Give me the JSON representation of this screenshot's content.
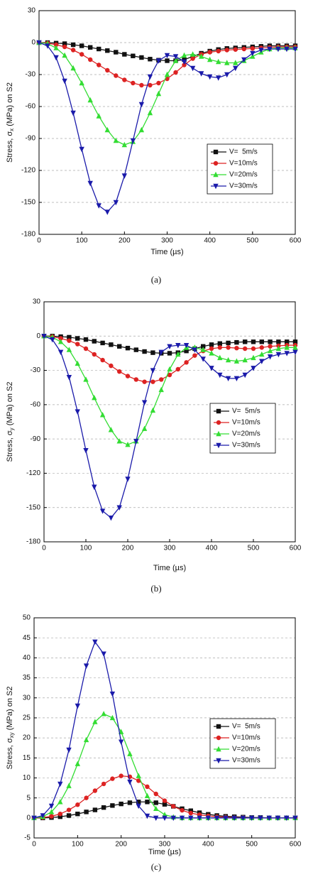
{
  "chart_data": [
    {
      "type": "line",
      "caption": "(a)",
      "x_label": "Time (µs)",
      "y_label": {
        "prefix": "Stress, σ",
        "sub": "x",
        "suffix": " (MPa) on S2"
      },
      "x": [
        0,
        20,
        40,
        60,
        80,
        100,
        120,
        140,
        160,
        180,
        200,
        220,
        240,
        260,
        280,
        300,
        320,
        340,
        360,
        380,
        400,
        420,
        440,
        460,
        480,
        500,
        520,
        540,
        560,
        580,
        600
      ],
      "xlim": [
        0,
        600
      ],
      "xticks": [
        0,
        100,
        200,
        300,
        400,
        500,
        600
      ],
      "ylim": [
        -180,
        30
      ],
      "yticks": [
        -180,
        -150,
        -120,
        -90,
        -60,
        -30,
        0,
        30
      ],
      "grid": true,
      "series": [
        {
          "name": "V=  5m/s",
          "color": "#111111",
          "marker": "square",
          "values": [
            0,
            0,
            -0.5,
            -1,
            -2,
            -3,
            -4.5,
            -6,
            -7.5,
            -9,
            -11,
            -12.5,
            -14,
            -15.5,
            -16.5,
            -17,
            -17,
            -16,
            -13,
            -10,
            -8,
            -6.5,
            -5.5,
            -5,
            -4.5,
            -4,
            -3.5,
            -3,
            -3,
            -3,
            -3
          ]
        },
        {
          "name": "V=10m/s",
          "color": "#dd2222",
          "marker": "circle",
          "values": [
            0,
            -0.5,
            -2,
            -4,
            -7,
            -11,
            -16,
            -21,
            -26,
            -31,
            -35,
            -38,
            -40,
            -40,
            -38,
            -34,
            -28,
            -21,
            -15,
            -11,
            -9,
            -8,
            -7,
            -6.5,
            -6,
            -5.5,
            -5,
            -4.5,
            -4,
            -4,
            -4
          ]
        },
        {
          "name": "V=20m/s",
          "color": "#33dd33",
          "marker": "triangle-up",
          "values": [
            0,
            -1,
            -5,
            -12,
            -24,
            -38,
            -54,
            -69,
            -82,
            -92,
            -96,
            -93,
            -82,
            -66,
            -48,
            -30,
            -17,
            -12,
            -11,
            -13,
            -16,
            -18,
            -19,
            -19,
            -17,
            -13,
            -9,
            -6,
            -5,
            -5,
            -5
          ]
        },
        {
          "name": "V=30m/s",
          "color": "#1a1aaa",
          "marker": "triangle-down",
          "values": [
            0,
            -3,
            -14,
            -36,
            -66,
            -100,
            -132,
            -153,
            -159,
            -150,
            -125,
            -92,
            -58,
            -32,
            -17,
            -12,
            -13,
            -18,
            -24,
            -29,
            -32,
            -33,
            -30,
            -24,
            -16,
            -10,
            -7,
            -6,
            -6,
            -6,
            -6
          ]
        }
      ]
    },
    {
      "type": "line",
      "caption": "(b)",
      "x_label": "Time (µs)",
      "y_label": {
        "prefix": "Stress, σ",
        "sub": "y",
        "suffix": " (MPa) on S2"
      },
      "x": [
        0,
        20,
        40,
        60,
        80,
        100,
        120,
        140,
        160,
        180,
        200,
        220,
        240,
        260,
        280,
        300,
        320,
        340,
        360,
        380,
        400,
        420,
        440,
        460,
        480,
        500,
        520,
        540,
        560,
        580,
        600
      ],
      "xlim": [
        0,
        600
      ],
      "xticks": [
        0,
        100,
        200,
        300,
        400,
        500,
        600
      ],
      "ylim": [
        -180,
        30
      ],
      "yticks": [
        -180,
        -150,
        -120,
        -90,
        -60,
        -30,
        0,
        30
      ],
      "grid": true,
      "series": [
        {
          "name": "V=  5m/s",
          "color": "#111111",
          "marker": "square",
          "values": [
            0,
            0,
            -0.5,
            -1,
            -2,
            -3,
            -4.5,
            -6,
            -7.5,
            -9,
            -10.5,
            -12,
            -13.5,
            -14.5,
            -15,
            -15,
            -14.5,
            -13,
            -11,
            -9,
            -7.5,
            -6.5,
            -6,
            -5.5,
            -5,
            -5,
            -5,
            -5,
            -5,
            -5,
            -5
          ]
        },
        {
          "name": "V=10m/s",
          "color": "#dd2222",
          "marker": "circle",
          "values": [
            0,
            -0.5,
            -2,
            -4,
            -7,
            -11,
            -16,
            -21,
            -26,
            -31,
            -35,
            -38,
            -40,
            -40,
            -38,
            -34,
            -29,
            -23,
            -17,
            -13,
            -11,
            -10,
            -10,
            -10.5,
            -11,
            -11,
            -10,
            -9,
            -8.5,
            -8,
            -8
          ]
        },
        {
          "name": "V=20m/s",
          "color": "#33dd33",
          "marker": "triangle-up",
          "values": [
            0,
            -1,
            -5,
            -12,
            -24,
            -38,
            -54,
            -69,
            -82,
            -92,
            -95,
            -92,
            -81,
            -65,
            -47,
            -29,
            -16,
            -10,
            -10,
            -12,
            -15,
            -19,
            -21,
            -22,
            -21,
            -19,
            -16,
            -13,
            -11,
            -10,
            -10
          ]
        },
        {
          "name": "V=30m/s",
          "color": "#1a1aaa",
          "marker": "triangle-down",
          "values": [
            0,
            -3,
            -14,
            -36,
            -66,
            -100,
            -132,
            -153,
            -159,
            -150,
            -125,
            -92,
            -58,
            -30,
            -14,
            -9,
            -8,
            -8,
            -12,
            -20,
            -28,
            -34,
            -37,
            -37,
            -34,
            -28,
            -22,
            -18,
            -16,
            -15,
            -14
          ]
        }
      ]
    },
    {
      "type": "line",
      "caption": "(c)",
      "x_label": "Time (µs)",
      "y_label": {
        "prefix": "Stress, σ",
        "sub": "xy",
        "suffix": " (MPa) on S2"
      },
      "x": [
        0,
        20,
        40,
        60,
        80,
        100,
        120,
        140,
        160,
        180,
        200,
        220,
        240,
        260,
        280,
        300,
        320,
        340,
        360,
        380,
        400,
        420,
        440,
        460,
        480,
        500,
        520,
        540,
        560,
        580,
        600
      ],
      "xlim": [
        0,
        600
      ],
      "xticks": [
        0,
        100,
        200,
        300,
        400,
        500,
        600
      ],
      "ylim": [
        -5,
        50
      ],
      "yticks": [
        -5,
        0,
        5,
        10,
        15,
        20,
        25,
        30,
        35,
        40,
        45,
        50
      ],
      "grid": true,
      "series": [
        {
          "name": "V=  5m/s",
          "color": "#111111",
          "marker": "square",
          "values": [
            0,
            0,
            0.1,
            0.3,
            0.6,
            1,
            1.5,
            2,
            2.6,
            3.1,
            3.5,
            3.8,
            4,
            4,
            3.8,
            3.4,
            2.9,
            2.3,
            1.8,
            1.3,
            0.9,
            0.6,
            0.4,
            0.3,
            0.2,
            0.1,
            0.1,
            0,
            0,
            0,
            0
          ]
        },
        {
          "name": "V=10m/s",
          "color": "#dd2222",
          "marker": "circle",
          "values": [
            0,
            0.1,
            0.4,
            1,
            2,
            3.3,
            5,
            6.8,
            8.5,
            9.8,
            10.5,
            10.3,
            9.3,
            7.8,
            6,
            4.3,
            2.9,
            1.9,
            1.2,
            0.8,
            0.5,
            0.3,
            0.2,
            0.1,
            0.1,
            0,
            0,
            0,
            0,
            0,
            0
          ]
        },
        {
          "name": "V=20m/s",
          "color": "#33dd33",
          "marker": "triangle-up",
          "values": [
            0,
            0.3,
            1.5,
            4,
            8,
            13.5,
            19.5,
            24,
            26,
            25,
            21.5,
            16,
            10.5,
            5.5,
            2.3,
            0.8,
            0.2,
            0,
            0,
            0,
            0,
            0,
            0,
            0,
            0,
            0,
            0,
            0,
            0,
            0,
            0
          ]
        },
        {
          "name": "V=30m/s",
          "color": "#1a1aaa",
          "marker": "triangle-down",
          "values": [
            0,
            0.6,
            3,
            8.5,
            17,
            28,
            38,
            44,
            41,
            31,
            19,
            9,
            3,
            0.5,
            0,
            0,
            0,
            0,
            0,
            0,
            0,
            0,
            0,
            0,
            0,
            0,
            0,
            0,
            0,
            0,
            0
          ]
        }
      ]
    }
  ]
}
